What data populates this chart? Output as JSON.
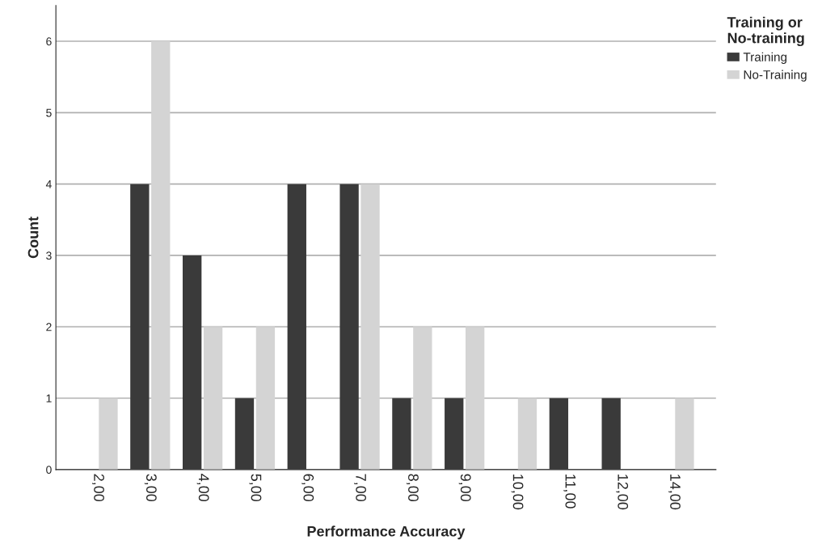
{
  "chart_data": {
    "type": "bar",
    "xlabel": "Performance Accuracy",
    "ylabel": "Count",
    "legend_title": "Training or\nNo-training",
    "categories": [
      "2,00",
      "3,00",
      "4,00",
      "5,00",
      "6,00",
      "7,00",
      "8,00",
      "9,00",
      "10,00",
      "11,00",
      "12,00",
      "14,00"
    ],
    "series": [
      {
        "name": "Training",
        "color": "#3a3a3a",
        "values": [
          0,
          4,
          3,
          1,
          4,
          4,
          1,
          1,
          0,
          1,
          1,
          0
        ]
      },
      {
        "name": "No-Training",
        "color": "#d4d4d4",
        "values": [
          1,
          6,
          2,
          2,
          0,
          4,
          2,
          2,
          1,
          0,
          0,
          1
        ]
      }
    ],
    "ylim": [
      0,
      6.5
    ],
    "yticks": [
      0,
      1,
      2,
      3,
      4,
      5,
      6
    ],
    "grid": "y",
    "legend": "top right"
  }
}
